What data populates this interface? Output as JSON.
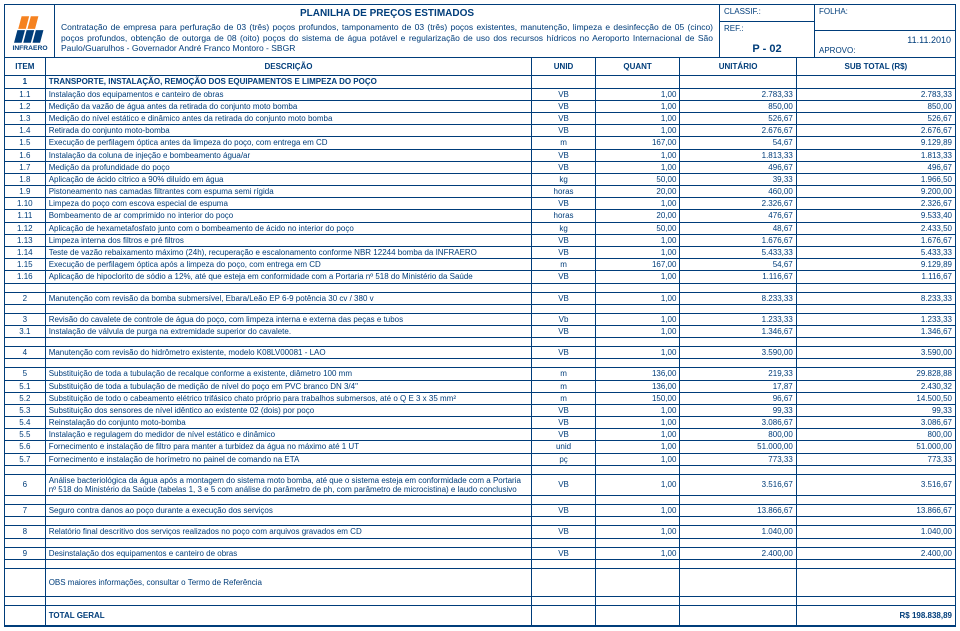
{
  "header": {
    "title": "PLANILHA DE PREÇOS ESTIMADOS",
    "description": "Contratação de empresa para perfuração de 03 (três) poços profundos, tamponamento de 03 (três) poços existentes, manutenção, limpeza e desinfecção de 05 (cinco) poços profundos, obtenção de outorga de 08 (oito) poços do sistema de água potável e regularização de uso dos recursos hídricos no Aeroporto Internacional de São Paulo/Guarulhos - Governador André Franco Montoro - SBGR",
    "classif_label": "CLASSIF.:",
    "ref_label": "REF.:",
    "ref_value": "P - 02",
    "folha_label": "FOLHA:",
    "date": "11.11.2010",
    "aprovo_label": "APROVO:"
  },
  "columns": {
    "item": "ITEM",
    "desc": "DESCRIÇÃO",
    "unid": "UNID",
    "quant": "QUANT",
    "unit": "UNITÁRIO",
    "sub": "SUB TOTAL (R$)"
  },
  "rows": [
    {
      "type": "section",
      "item": "1",
      "desc": "TRANSPORTE, INSTALAÇÃO, REMOÇÃO DOS EQUIPAMENTOS E LIMPEZA DO POÇO"
    },
    {
      "item": "1.1",
      "desc": "Instalação dos equipamentos e canteiro de obras",
      "unid": "VB",
      "quant": "1,00",
      "unit": "2.783,33",
      "sub": "2.783,33"
    },
    {
      "item": "1.2",
      "desc": "Medição da vazão de água antes da retirada do conjunto moto bomba",
      "unid": "VB",
      "quant": "1,00",
      "unit": "850,00",
      "sub": "850,00"
    },
    {
      "item": "1.3",
      "desc": "Medição do nível estático e dinâmico antes da retirada do conjunto moto bomba",
      "unid": "VB",
      "quant": "1,00",
      "unit": "526,67",
      "sub": "526,67"
    },
    {
      "item": "1.4",
      "desc": "Retirada do conjunto moto-bomba",
      "unid": "VB",
      "quant": "1,00",
      "unit": "2.676,67",
      "sub": "2.676,67"
    },
    {
      "item": "1.5",
      "desc": "Execução de perfilagem óptica antes da limpeza do poço, com entrega em CD",
      "unid": "m",
      "quant": "167,00",
      "unit": "54,67",
      "sub": "9.129,89"
    },
    {
      "item": "1.6",
      "desc": "Instalação da coluna de injeção e bombeamento água/ar",
      "unid": "VB",
      "quant": "1,00",
      "unit": "1.813,33",
      "sub": "1.813,33"
    },
    {
      "item": "1.7",
      "desc": "Medição da profundidade do poço",
      "unid": "VB",
      "quant": "1,00",
      "unit": "496,67",
      "sub": "496,67"
    },
    {
      "item": "1.8",
      "desc": "Aplicação de ácido cítrico a 90% diluído em água",
      "unid": "kg",
      "quant": "50,00",
      "unit": "39,33",
      "sub": "1.966,50"
    },
    {
      "item": "1.9",
      "desc": "Pistoneamento nas camadas filtrantes com espuma semi rígida",
      "unid": "horas",
      "quant": "20,00",
      "unit": "460,00",
      "sub": "9.200,00"
    },
    {
      "item": "1.10",
      "desc": "Limpeza do poço com escova especial de espuma",
      "unid": "VB",
      "quant": "1,00",
      "unit": "2.326,67",
      "sub": "2.326,67"
    },
    {
      "item": "1.11",
      "desc": "Bombeamento de ar comprimido no interior do poço",
      "unid": "horas",
      "quant": "20,00",
      "unit": "476,67",
      "sub": "9.533,40"
    },
    {
      "item": "1.12",
      "desc": "Aplicação de hexametafosfato junto com o bombeamento de ácido no interior do poço",
      "unid": "kg",
      "quant": "50,00",
      "unit": "48,67",
      "sub": "2.433,50"
    },
    {
      "item": "1.13",
      "desc": "Limpeza interna dos filtros e pré filtros",
      "unid": "VB",
      "quant": "1,00",
      "unit": "1.676,67",
      "sub": "1.676,67"
    },
    {
      "item": "1.14",
      "desc": "Teste de vazão rebaixamento máximo (24h), recuperação e escalonamento conforme NBR 12244 bomba da INFRAERO",
      "unid": "VB",
      "quant": "1,00",
      "unit": "5.433,33",
      "sub": "5.433,33"
    },
    {
      "item": "1.15",
      "desc": "Execução de perfilagem óptica após a limpeza do poço, com entrega em CD",
      "unid": "m",
      "quant": "167,00",
      "unit": "54,67",
      "sub": "9.129,89"
    },
    {
      "item": "1.16",
      "desc": "Aplicação de hipoclorito de sódio a 12%, até que esteja em conformidade com a Portaria nº 518 do Ministério da Saúde",
      "unid": "VB",
      "quant": "1,00",
      "unit": "1.116,67",
      "sub": "1.116,67"
    },
    {
      "type": "blank"
    },
    {
      "item": "2",
      "desc": "Manutenção com revisão da bomba submersível, Ebara/Leão EP 6-9 potência 30 cv / 380 v",
      "unid": "VB",
      "quant": "1,00",
      "unit": "8.233,33",
      "sub": "8.233,33"
    },
    {
      "type": "blank"
    },
    {
      "item": "3",
      "desc": "Revisão do cavalete de controle de água do poço, com limpeza interna e externa das peças e tubos",
      "unid": "Vb",
      "quant": "1,00",
      "unit": "1.233,33",
      "sub": "1.233,33"
    },
    {
      "item": "3.1",
      "desc": "Instalação de válvula de purga na extremidade superior do cavalete.",
      "unid": "VB",
      "quant": "1,00",
      "unit": "1.346,67",
      "sub": "1.346,67"
    },
    {
      "type": "blank"
    },
    {
      "item": "4",
      "desc": "Manutenção com revisão do hidrômetro existente, modelo K08LV00081 - LAO",
      "unid": "VB",
      "quant": "1,00",
      "unit": "3.590,00",
      "sub": "3.590,00"
    },
    {
      "type": "blank"
    },
    {
      "item": "5",
      "desc": "Substituição de toda a tubulação de recalque conforme a existente, diâmetro 100 mm",
      "unid": "m",
      "quant": "136,00",
      "unit": "219,33",
      "sub": "29.828,88"
    },
    {
      "item": "5.1",
      "desc": "Substituição de toda a tubulação de medição de nível do poço em PVC branco DN 3/4\"",
      "unid": "m",
      "quant": "136,00",
      "unit": "17,87",
      "sub": "2.430,32"
    },
    {
      "item": "5.2",
      "desc": "Substituição de todo o cabeamento elétrico trifásico chato próprio para trabalhos submersos, até o Q E 3 x 35 mm²",
      "unid": "m",
      "quant": "150,00",
      "unit": "96,67",
      "sub": "14.500,50"
    },
    {
      "item": "5.3",
      "desc": "Substituição dos sensores de nível idêntico ao existente 02 (dois) por poço",
      "unid": "VB",
      "quant": "1,00",
      "unit": "99,33",
      "sub": "99,33"
    },
    {
      "item": "5.4",
      "desc": "Reinstalação do conjunto moto-bomba",
      "unid": "VB",
      "quant": "1,00",
      "unit": "3.086,67",
      "sub": "3.086,67"
    },
    {
      "item": "5.5",
      "desc": "Instalação e regulagem do medidor de nível estático e dinâmico",
      "unid": "VB",
      "quant": "1,00",
      "unit": "800,00",
      "sub": "800,00"
    },
    {
      "item": "5.6",
      "desc": "Fornecimento e instalação de filtro para manter a turbidez da água no máximo até 1 UT",
      "unid": "unid",
      "quant": "1,00",
      "unit": "51.000,00",
      "sub": "51.000,00"
    },
    {
      "item": "5.7",
      "desc": "Fornecimento e instalação de horímetro no painel de comando na ETA",
      "unid": "pç",
      "quant": "1,00",
      "unit": "773,33",
      "sub": "773,33"
    },
    {
      "type": "blank"
    },
    {
      "item": "6",
      "desc": "Análise bacteriológica da água após a montagem do sistema moto bomba, até que o sistema esteja em conformidade com a Portaria nº 518 do Ministério da Saúde (tabelas 1, 3 e 5 com análise do parâmetro de ph, com parâmetro de microcistina) e laudo conclusivo",
      "unid": "VB",
      "quant": "1,00",
      "unit": "3.516,67",
      "sub": "3.516,67"
    },
    {
      "type": "blank"
    },
    {
      "item": "7",
      "desc": "Seguro contra danos ao poço durante a execução dos serviços",
      "unid": "VB",
      "quant": "1,00",
      "unit": "13.866,67",
      "sub": "13.866,67"
    },
    {
      "type": "blank"
    },
    {
      "item": "8",
      "desc": "Relatório final descritivo dos serviços realizados no poço com arquivos gravados em CD",
      "unid": "VB",
      "quant": "1,00",
      "unit": "1.040,00",
      "sub": "1.040,00"
    },
    {
      "type": "blank"
    },
    {
      "item": "9",
      "desc": "Desinstalação dos equipamentos e canteiro de obras",
      "unid": "VB",
      "quant": "1,00",
      "unit": "2.400,00",
      "sub": "2.400,00"
    },
    {
      "type": "blank"
    }
  ],
  "obs": "OBS maiores informações, consultar o Termo de Referência",
  "total_label": "TOTAL GERAL",
  "total_value": "R$ 198.838,89"
}
